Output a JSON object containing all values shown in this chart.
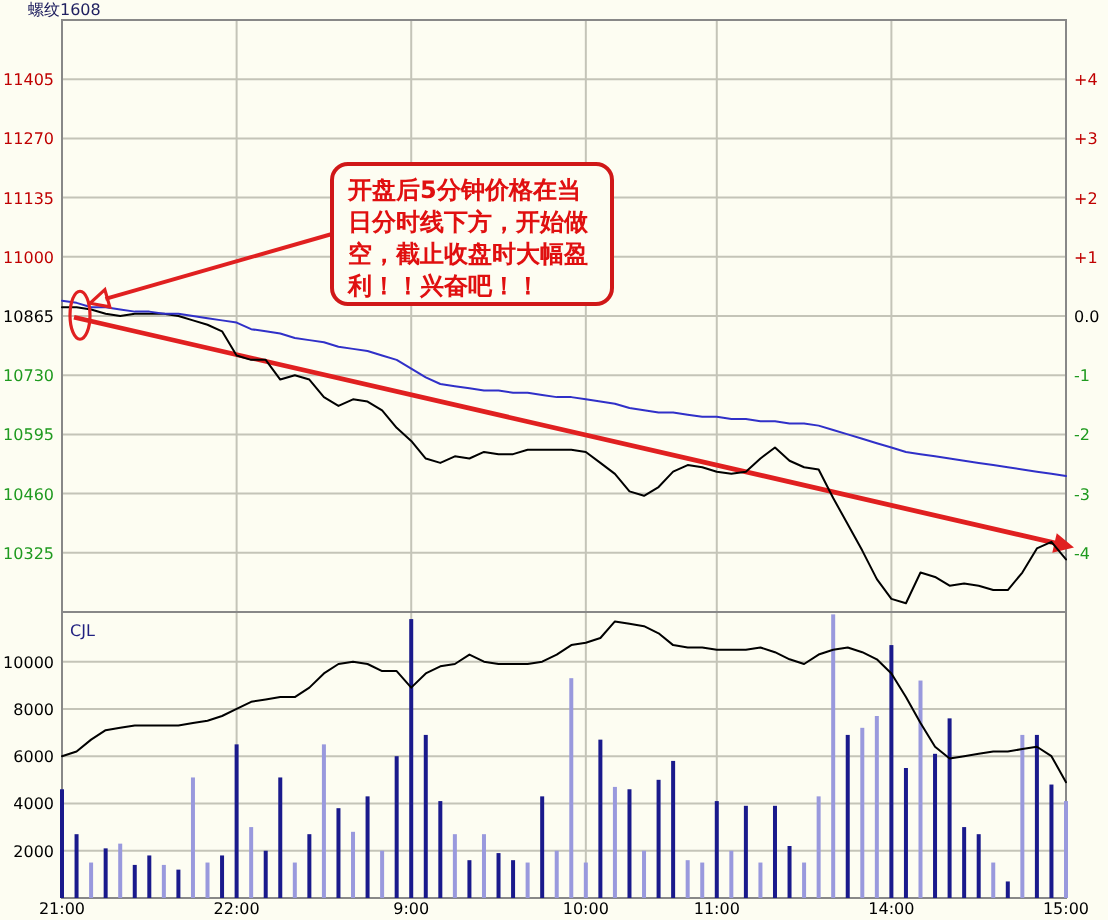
{
  "chart_data": [
    {
      "type": "line",
      "title": "螺纹1608",
      "categories": [
        null,
        null,
        null,
        null,
        null,
        null,
        null,
        null,
        null,
        null,
        null,
        null,
        null,
        null,
        null,
        null,
        null,
        null,
        null,
        null,
        null,
        null,
        null,
        null,
        null,
        null,
        null,
        null,
        null,
        null,
        null,
        null,
        null,
        null,
        null,
        null,
        null,
        null,
        null,
        null,
        null,
        null,
        null,
        null,
        null,
        null,
        null,
        null,
        null,
        null,
        null,
        null,
        null,
        null,
        null,
        null,
        null,
        null,
        null,
        null,
        null,
        null,
        null,
        null,
        null,
        null,
        null,
        null,
        null,
        null
      ],
      "series": [
        {
          "color": "#000000",
          "values": [
            10885,
            10885,
            10880,
            10870,
            10865,
            10870,
            10870,
            10870,
            10865,
            10855,
            10845,
            10830,
            10775,
            10765,
            10765,
            10720,
            10730,
            10720,
            10680,
            10660,
            10675,
            10670,
            10650,
            10610,
            10580,
            10540,
            10530,
            10545,
            10540,
            10555,
            10550,
            10550,
            10560,
            10560,
            10560,
            10560,
            10555,
            10530,
            10505,
            10465,
            10455,
            10475,
            10510,
            10525,
            10520,
            10510,
            10505,
            10510,
            10540,
            10565,
            10535,
            10520,
            10515,
            10450,
            10390,
            10330,
            10265,
            10220,
            10210,
            10280,
            10270,
            10250,
            10255,
            10250,
            10240,
            10240,
            10280,
            10335,
            10350,
            10310
          ]
        },
        {
          "color": "#3030c8",
          "values": [
            10900,
            10895,
            10885,
            10885,
            10880,
            10875,
            10875,
            10870,
            10870,
            10865,
            10860,
            10855,
            10850,
            10835,
            10830,
            10825,
            10815,
            10810,
            10805,
            10795,
            10790,
            10785,
            10775,
            10765,
            10745,
            10725,
            10710,
            10705,
            10700,
            10695,
            10695,
            10690,
            10690,
            10685,
            10680,
            10680,
            10675,
            10670,
            10665,
            10655,
            10650,
            10645,
            10645,
            10640,
            10635,
            10635,
            10630,
            10630,
            10625,
            10625,
            10620,
            10620,
            10615,
            10605,
            10595,
            10585,
            10575,
            10565,
            10555,
            10550,
            10545,
            10540,
            10535,
            10530,
            10525,
            10520,
            10515,
            10510,
            10505,
            10500
          ]
        }
      ],
      "ylim": [
        10190,
        11540
      ],
      "yticks": [
        10325,
        10460,
        10595,
        10730,
        10865,
        11000,
        11135,
        11270,
        11405
      ],
      "y2lim": [
        -5,
        5
      ],
      "y2ticks": [
        {
          "value": -4,
          "label": "-4"
        },
        {
          "value": -3,
          "label": "-3"
        },
        {
          "value": -2,
          "label": "-2"
        },
        {
          "value": -1,
          "label": "-1"
        },
        {
          "value": 0,
          "label": "0.0"
        },
        {
          "value": 1,
          "label": "+1"
        },
        {
          "value": 2,
          "label": "+2"
        },
        {
          "value": 3,
          "label": "+3"
        },
        {
          "value": 4,
          "label": "+4"
        }
      ],
      "grid": true,
      "tick_labels": "y",
      "annotations": [
        "开盘后5分钟价格在当日分时线下方，开始做空，截止收盘时大幅盈利！！兴奋吧！！"
      ]
    },
    {
      "type": "bar",
      "title": "CJL",
      "categories": [
        "21:00",
        null,
        null,
        null,
        null,
        null,
        null,
        null,
        null,
        null,
        null,
        null,
        "22:00",
        null,
        null,
        null,
        null,
        null,
        null,
        null,
        null,
        null,
        null,
        null,
        "9:00",
        null,
        null,
        null,
        null,
        null,
        null,
        null,
        null,
        null,
        null,
        null,
        "10:00",
        null,
        null,
        null,
        null,
        null,
        null,
        null,
        null,
        "11:00",
        null,
        null,
        null,
        null,
        null,
        null,
        null,
        null,
        null,
        null,
        null,
        "14:00",
        null,
        null,
        null,
        null,
        null,
        null,
        null,
        null,
        null,
        null,
        null,
        "15:00"
      ],
      "series": [
        {
          "values": [
            4600,
            2700,
            1500,
            2100,
            2300,
            1400,
            1800,
            1400,
            1200,
            5100,
            1500,
            1800,
            6500,
            3000,
            2000,
            5100,
            1500,
            2700,
            6500,
            3800,
            2800,
            4300,
            2000,
            6000,
            11800,
            6900,
            4100,
            2700,
            1600,
            2700,
            1900,
            1600,
            1500,
            4300,
            2000,
            9300,
            1500,
            6700,
            4700,
            4600,
            2000,
            5000,
            5800,
            1600,
            1500,
            4100,
            2000,
            3900,
            1500,
            3900,
            2200,
            1500,
            4300,
            12000,
            6900,
            7200,
            7700,
            10700,
            5500,
            9200,
            6100,
            7600,
            3000,
            2700,
            1500,
            700,
            6900,
            6900,
            4800,
            4100
          ],
          "colors": [
            "#1a1a8c",
            "#1a1a8c",
            "#9999dd",
            "#1a1a8c",
            "#9999dd",
            "#1a1a8c",
            "#1a1a8c",
            "#9999dd",
            "#1a1a8c",
            "#9999dd",
            "#9999dd",
            "#1a1a8c",
            "#1a1a8c",
            "#9999dd",
            "#1a1a8c",
            "#1a1a8c",
            "#9999dd",
            "#1a1a8c",
            "#9999dd",
            "#1a1a8c",
            "#9999dd",
            "#1a1a8c",
            "#9999dd",
            "#1a1a8c",
            "#1a1a8c",
            "#1a1a8c",
            "#1a1a8c",
            "#9999dd",
            "#1a1a8c",
            "#9999dd",
            "#1a1a8c",
            "#1a1a8c",
            "#9999dd",
            "#1a1a8c",
            "#9999dd",
            "#9999dd",
            "#9999dd",
            "#1a1a8c",
            "#9999dd",
            "#1a1a8c",
            "#9999dd",
            "#1a1a8c",
            "#1a1a8c",
            "#9999dd",
            "#9999dd",
            "#1a1a8c",
            "#9999dd",
            "#1a1a8c",
            "#9999dd",
            "#1a1a8c",
            "#1a1a8c",
            "#9999dd",
            "#9999dd",
            "#9999dd",
            "#1a1a8c",
            "#9999dd",
            "#9999dd",
            "#1a1a8c",
            "#1a1a8c",
            "#9999dd",
            "#1a1a8c",
            "#1a1a8c",
            "#1a1a8c",
            "#1a1a8c",
            "#9999dd",
            "#1a1a8c",
            "#9999dd",
            "#1a1a8c",
            "#1a1a8c",
            "#9999dd"
          ]
        },
        {
          "type": "line",
          "color": "#000000",
          "values": [
            6000,
            6200,
            6700,
            7100,
            7200,
            7300,
            7300,
            7300,
            7300,
            7400,
            7500,
            7700,
            8000,
            8300,
            8400,
            8500,
            8500,
            8900,
            9500,
            9900,
            10000,
            9900,
            9600,
            9600,
            8900,
            9500,
            9800,
            9900,
            10300,
            10000,
            9900,
            9900,
            9900,
            10000,
            10300,
            10700,
            10800,
            11000,
            11700,
            11600,
            11500,
            11200,
            10700,
            10600,
            10600,
            10500,
            10500,
            10500,
            10600,
            10400,
            10100,
            9900,
            10300,
            10500,
            10600,
            10400,
            10100,
            9500,
            8500,
            7400,
            6400,
            5900,
            6000,
            6100,
            6200,
            6200,
            6300,
            6400,
            6000,
            4900
          ]
        }
      ],
      "ylim": [
        0,
        12100
      ],
      "yticks": [
        2000,
        4000,
        6000,
        8000,
        10000
      ],
      "grid": true
    }
  ]
}
